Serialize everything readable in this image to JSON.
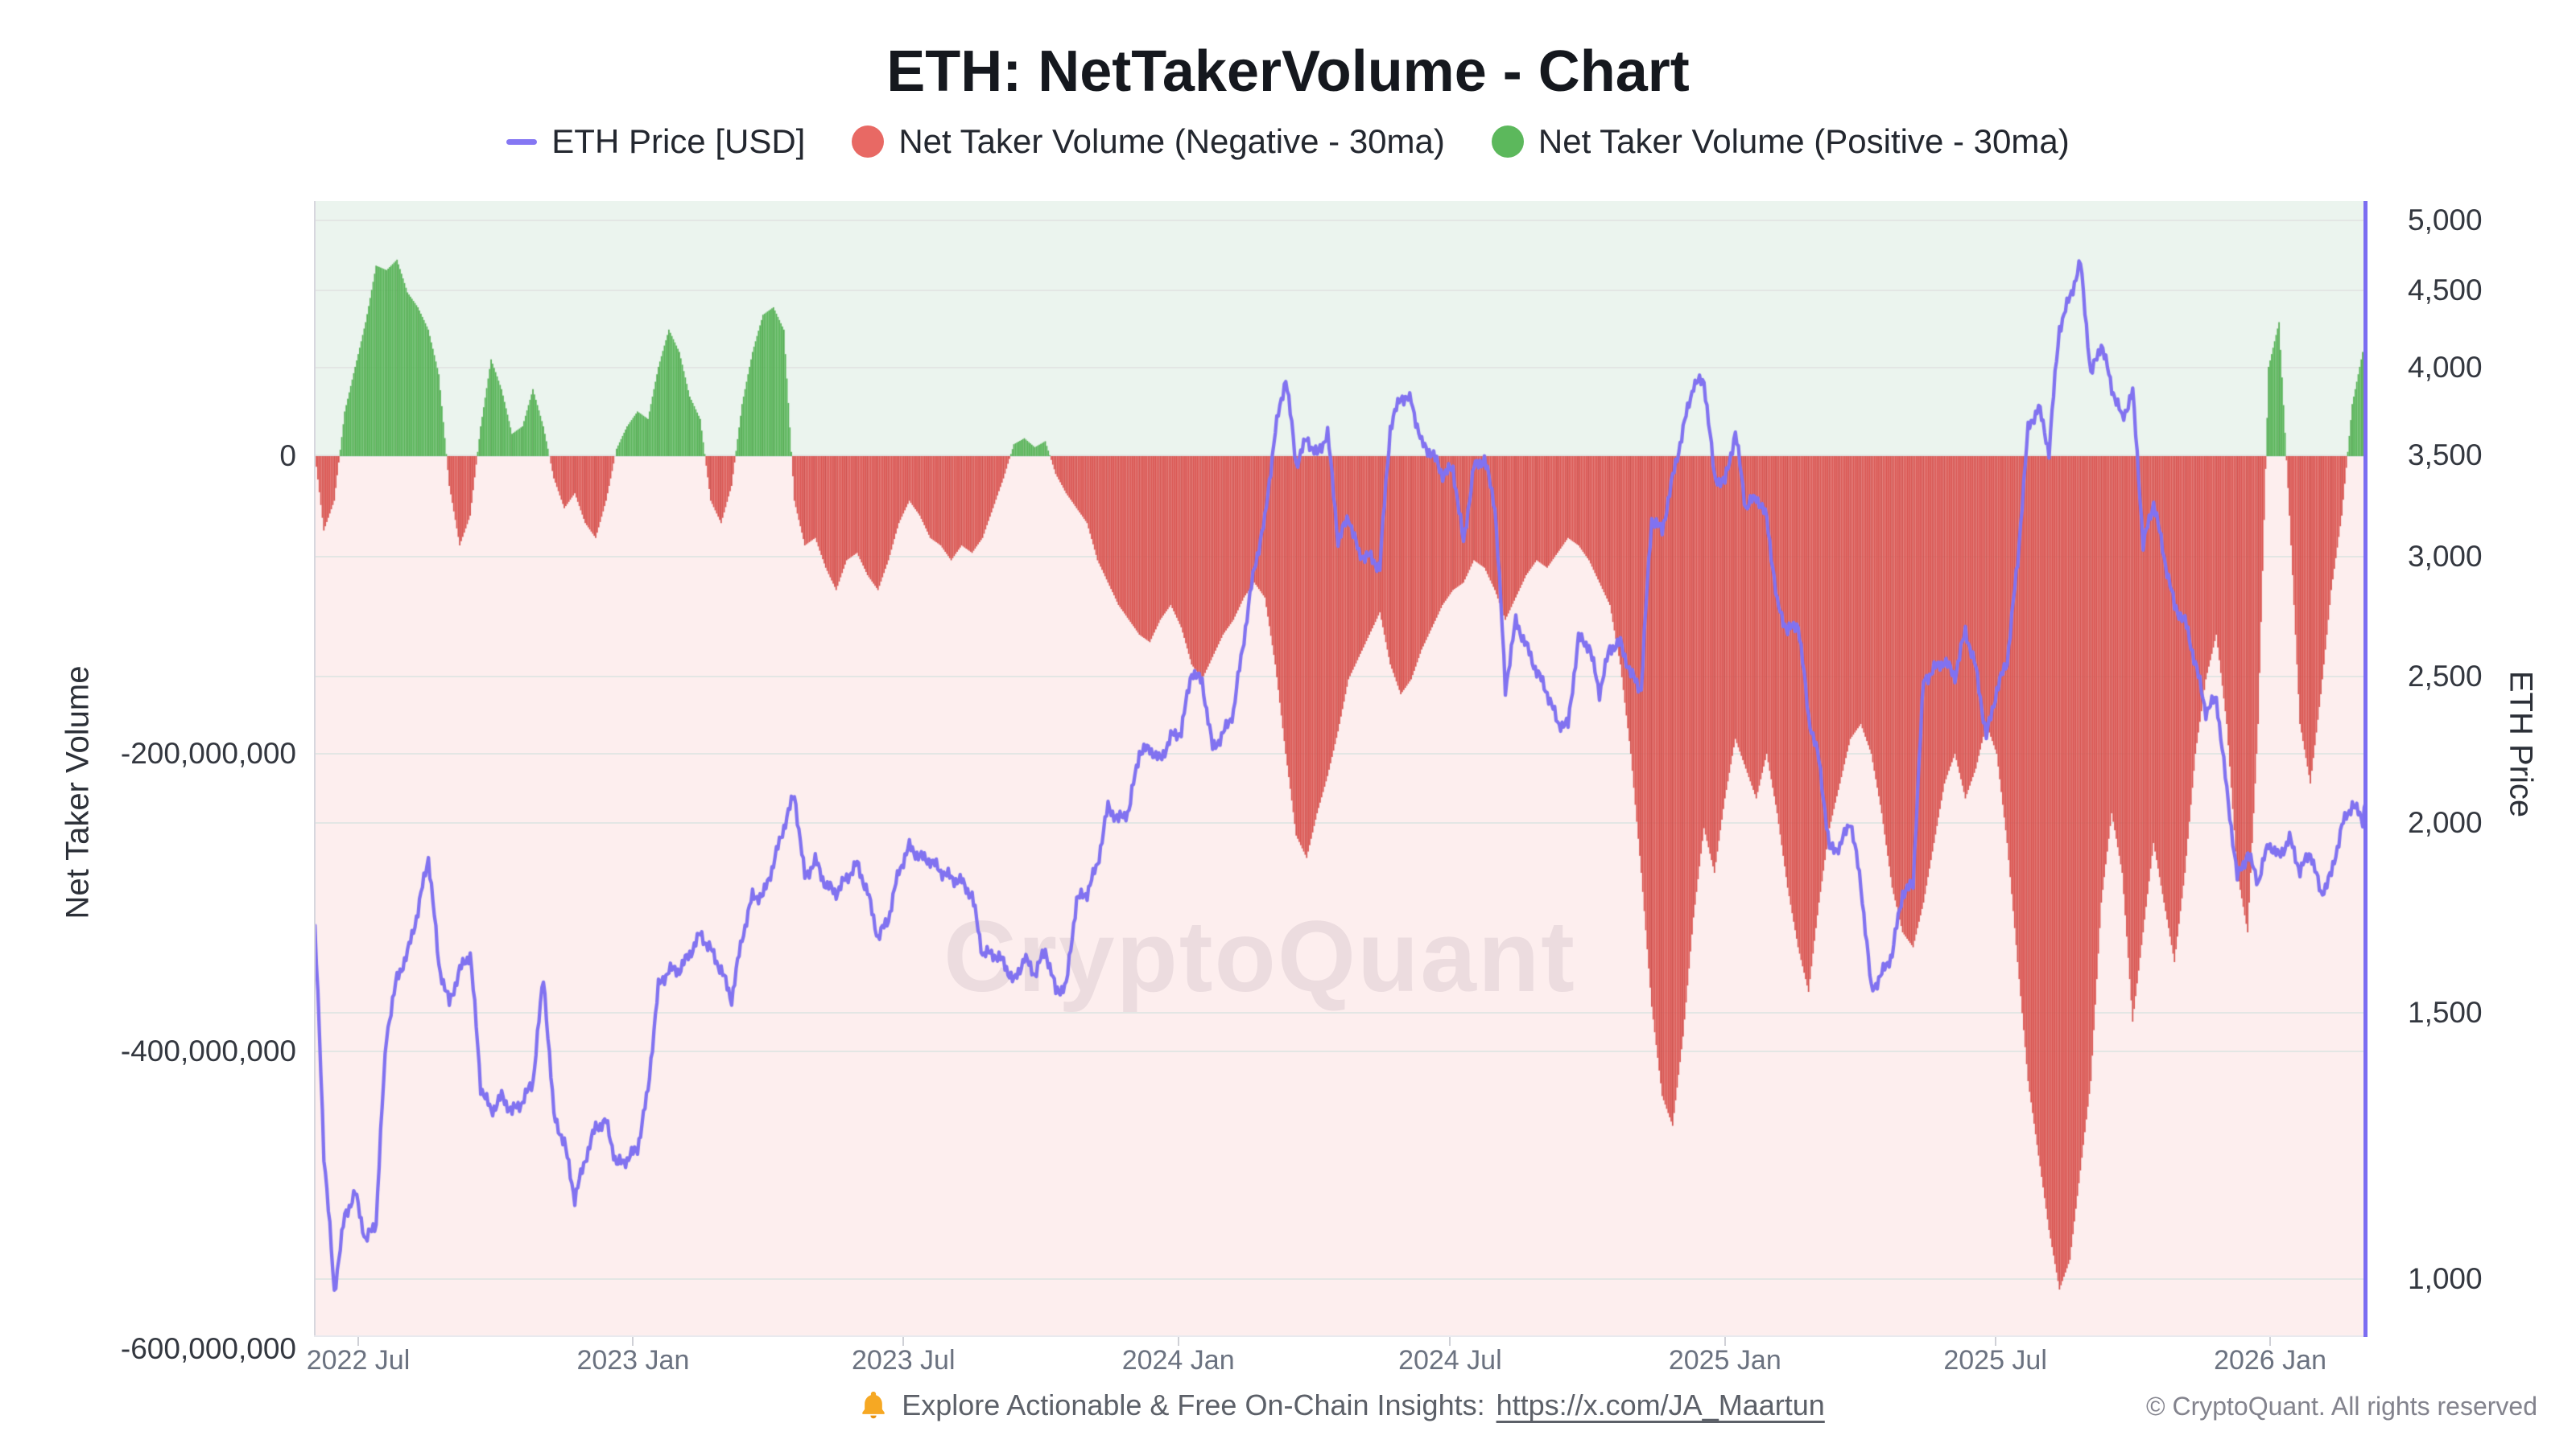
{
  "title": "ETH: NetTakerVolume - Chart",
  "watermark": "CryptoQuant",
  "legend": {
    "items": [
      {
        "label": "ETH Price [USD]",
        "swatch": "line",
        "color": "#8577f3"
      },
      {
        "label": "Net Taker Volume (Negative - 30ma)",
        "swatch": "dot",
        "color": "#e86964"
      },
      {
        "label": "Net Taker Volume (Positive - 30ma)",
        "swatch": "dot",
        "color": "#5cb85c"
      }
    ]
  },
  "footer": {
    "insight_text": "Explore Actionable & Free On-Chain Insights:",
    "insight_link": "https://x.com/JA_Maartun",
    "copyright": "© CryptoQuant. All rights reserved"
  },
  "chart_data": {
    "type": "bar+line",
    "title": "ETH: NetTakerVolume - Chart",
    "grid": "horizontal-only",
    "legend_position": "top-center",
    "colors": {
      "price_line": "#8172f0",
      "negative_bar": "#d9534f",
      "positive_bar": "#56b356",
      "bar_seam": "rgba(70,25,25,0.10)",
      "bg_above_zero": "#ebf4ee",
      "bg_below_zero": "#fdeeee",
      "gridline": "#e3e6e4",
      "right_axis_line": "#7b6cf1"
    },
    "x_axis": {
      "ticks": [
        "2022 Jul",
        "2023 Jan",
        "2023 Jul",
        "2024 Jan",
        "2024 Jul",
        "2025 Jan",
        "2025 Jul",
        "2026 Jan"
      ],
      "range": [
        "2022-06-01",
        "2026-03-07"
      ]
    },
    "left_axis": {
      "title": "Net Taker Volume",
      "scale": "linear",
      "ticks": [
        "0",
        "-200,000,000",
        "-400,000,000",
        "-600,000,000"
      ],
      "tick_values": [
        0,
        -200000000,
        -400000000,
        -600000000
      ],
      "range_usd": [
        -592000000,
        171000000
      ]
    },
    "right_axis": {
      "title": "ETH Price",
      "scale": "log",
      "ticks": [
        "5,000",
        "4,500",
        "4,000",
        "3,500",
        "3,000",
        "2,500",
        "2,000",
        "1,500",
        "1,000"
      ],
      "tick_values": [
        5000,
        4500,
        4000,
        3500,
        3000,
        2500,
        2000,
        1500,
        1000
      ],
      "range_usd": [
        915,
        5152
      ]
    },
    "series_meta": {
      "start_date": "2022-06-01",
      "interval_days": 7,
      "points": 198,
      "volume_unit": "million USD (30-day moving average of net taker volume)",
      "price_unit": "USD"
    },
    "series": {
      "eth_price_usd": [
        1780,
        1210,
        980,
        1100,
        1140,
        1060,
        1090,
        1450,
        1580,
        1640,
        1750,
        1900,
        1610,
        1520,
        1600,
        1640,
        1340,
        1290,
        1320,
        1290,
        1310,
        1350,
        1580,
        1280,
        1230,
        1130,
        1200,
        1260,
        1270,
        1190,
        1200,
        1220,
        1330,
        1560,
        1600,
        1600,
        1640,
        1690,
        1650,
        1600,
        1530,
        1680,
        1790,
        1790,
        1880,
        1990,
        2090,
        1840,
        1890,
        1820,
        1800,
        1840,
        1880,
        1800,
        1680,
        1730,
        1860,
        1930,
        1900,
        1890,
        1860,
        1840,
        1830,
        1790,
        1640,
        1640,
        1620,
        1570,
        1630,
        1590,
        1650,
        1550,
        1560,
        1780,
        1800,
        1880,
        2050,
        2010,
        2040,
        2230,
        2240,
        2200,
        2280,
        2300,
        2520,
        2480,
        2240,
        2290,
        2370,
        2650,
        2950,
        3170,
        3630,
        3940,
        3450,
        3590,
        3500,
        3620,
        3070,
        3190,
        3010,
        3000,
        2950,
        3650,
        3830,
        3800,
        3560,
        3510,
        3400,
        3430,
        3060,
        3440,
        3480,
        3240,
        2450,
        2720,
        2620,
        2520,
        2440,
        2330,
        2320,
        2650,
        2620,
        2440,
        2610,
        2630,
        2510,
        2450,
        3180,
        3120,
        3380,
        3640,
        3900,
        3920,
        3380,
        3360,
        3620,
        3230,
        3290,
        3180,
        2790,
        2680,
        2710,
        2350,
        2200,
        1920,
        1930,
        2010,
        1820,
        1550,
        1590,
        1640,
        1800,
        1820,
        2480,
        2530,
        2560,
        2500,
        2680,
        2530,
        2280,
        2450,
        2560,
        2970,
        3640,
        3770,
        3520,
        4250,
        4450,
        4690,
        3950,
        4150,
        3880,
        3700,
        3850,
        3050,
        3260,
        3000,
        2780,
        2720,
        2550,
        2370,
        2420,
        2100,
        1840,
        1910,
        1830,
        1940,
        1900,
        1955,
        1860,
        1915,
        1795,
        1850,
        1990,
        2060,
        2010,
        2250
      ],
      "net_taker_volume_30ma_musd": [
        10,
        -50,
        -30,
        30,
        60,
        90,
        128,
        125,
        132,
        110,
        100,
        85,
        55,
        -20,
        -60,
        -40,
        20,
        65,
        45,
        15,
        20,
        45,
        20,
        -15,
        -35,
        -25,
        -45,
        -55,
        -30,
        5,
        20,
        30,
        25,
        60,
        85,
        70,
        40,
        25,
        -30,
        -45,
        -20,
        35,
        70,
        95,
        100,
        85,
        -30,
        -60,
        -55,
        -75,
        -90,
        -70,
        -65,
        -80,
        -90,
        -70,
        -45,
        -30,
        -40,
        -55,
        -60,
        -70,
        -60,
        -65,
        -55,
        -35,
        -15,
        8,
        12,
        6,
        10,
        -12,
        -25,
        -35,
        -45,
        -70,
        -85,
        -100,
        -110,
        -120,
        -125,
        -110,
        -100,
        -115,
        -140,
        -150,
        -135,
        -120,
        -110,
        -95,
        -85,
        -95,
        -140,
        -200,
        -255,
        -270,
        -240,
        -215,
        -185,
        -150,
        -135,
        -120,
        -105,
        -140,
        -160,
        -150,
        -130,
        -115,
        -100,
        -90,
        -85,
        -70,
        -75,
        -90,
        -110,
        -95,
        -80,
        -70,
        -75,
        -65,
        -55,
        -60,
        -70,
        -85,
        -100,
        -140,
        -200,
        -280,
        -370,
        -430,
        -450,
        -390,
        -310,
        -250,
        -280,
        -230,
        -190,
        -210,
        -230,
        -200,
        -240,
        -290,
        -330,
        -360,
        -300,
        -250,
        -220,
        -190,
        -180,
        -200,
        -240,
        -290,
        -320,
        -330,
        -300,
        -260,
        -220,
        -200,
        -230,
        -210,
        -180,
        -200,
        -260,
        -340,
        -420,
        -470,
        -520,
        -560,
        -540,
        -480,
        -420,
        -300,
        -240,
        -280,
        -380,
        -320,
        -260,
        -300,
        -340,
        -280,
        -200,
        -150,
        -120,
        -180,
        -280,
        -320,
        -180,
        60,
        90,
        -40,
        -180,
        -220,
        -160,
        -90,
        -40,
        35,
        70,
        150
      ]
    }
  }
}
